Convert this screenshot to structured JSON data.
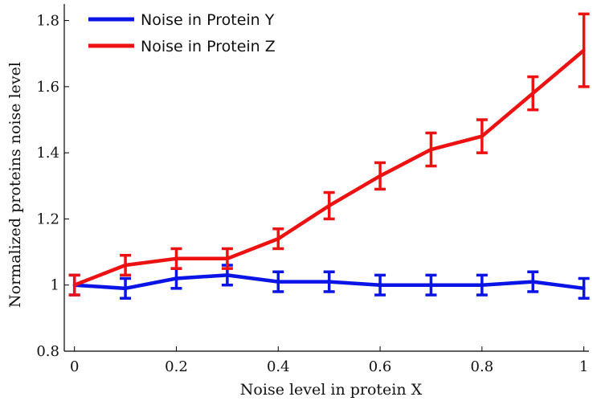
{
  "chart_data": {
    "type": "line",
    "title": "",
    "xlabel": "Noise level in protein X",
    "ylabel": "Normalized proteins noise level",
    "xlim": [
      -0.02,
      1.01
    ],
    "ylim": [
      0.8,
      1.85
    ],
    "x_ticks": [
      0,
      0.2,
      0.4,
      0.6,
      0.8,
      1
    ],
    "x_tick_labels": [
      "0",
      "0.2",
      "0.4",
      "0.6",
      "0.8",
      "1"
    ],
    "y_ticks": [
      0.8,
      1.0,
      1.2,
      1.4,
      1.6,
      1.8
    ],
    "y_tick_labels": [
      "0.8",
      "1",
      "1.2",
      "1.4",
      "1.6",
      "1.8"
    ],
    "grid": false,
    "legend_position": "top-left",
    "x": [
      0,
      0.1,
      0.2,
      0.3,
      0.4,
      0.5,
      0.6,
      0.7,
      0.8,
      0.9,
      1.0
    ],
    "series": [
      {
        "name": "Noise in Protein Y",
        "color": "#0a14e6",
        "values": [
          1.0,
          0.99,
          1.02,
          1.03,
          1.01,
          1.01,
          1.0,
          1.0,
          1.0,
          1.01,
          0.99
        ],
        "errors": [
          0.03,
          0.03,
          0.03,
          0.03,
          0.03,
          0.03,
          0.03,
          0.03,
          0.03,
          0.03,
          0.03
        ]
      },
      {
        "name": "Noise in Protein Z",
        "color": "#ee1111",
        "values": [
          1.0,
          1.06,
          1.08,
          1.08,
          1.14,
          1.24,
          1.33,
          1.41,
          1.45,
          1.58,
          1.71
        ],
        "errors": [
          0.03,
          0.03,
          0.03,
          0.03,
          0.03,
          0.04,
          0.04,
          0.05,
          0.05,
          0.05,
          0.11
        ]
      }
    ]
  }
}
